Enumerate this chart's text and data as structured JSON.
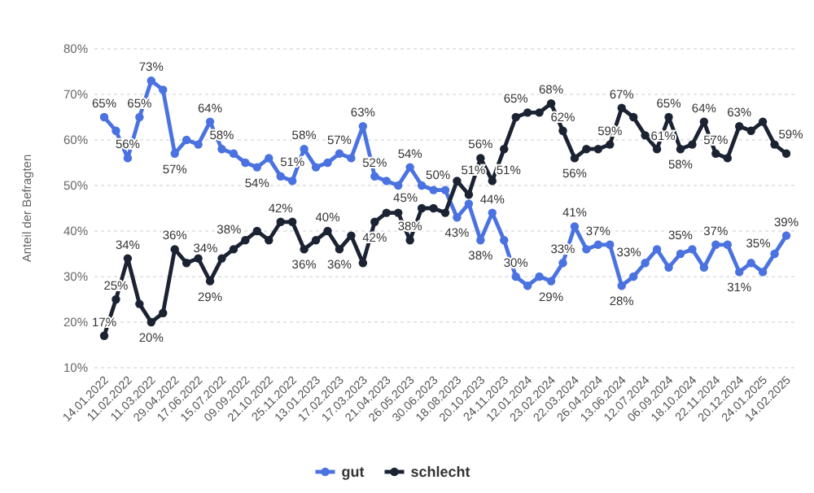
{
  "chart_data": {
    "type": "line",
    "ylabel": "Anteil der Befragten",
    "categories": [
      "14.01.2022",
      null,
      "11.02.2022",
      null,
      "11.03.2022",
      null,
      "29.04.2022",
      null,
      "17.06.2022",
      null,
      "15.07.2022",
      null,
      "09.09.2022",
      null,
      "21.10.2022",
      null,
      "25.11.2022",
      null,
      "13.01.2023",
      null,
      "17.02.2023",
      null,
      "17.03.2023",
      null,
      "21.04.2023",
      null,
      "26.05.2023",
      null,
      "30.06.2023",
      null,
      "18.08.2023",
      null,
      "20.10.2023",
      null,
      "24.11.2023",
      null,
      "12.01.2024",
      null,
      "23.02.2024",
      null,
      "22.03.2024",
      null,
      "26.04.2024",
      null,
      "13.06.2024",
      null,
      "12.07.2024",
      null,
      "06.09.2024",
      null,
      "18.10.2024",
      null,
      "22.11.2024",
      null,
      "20.12.2024",
      null,
      "24.01.2025",
      null,
      "14.02.2025"
    ],
    "series": [
      {
        "name": "gut",
        "color": "#4a72e0",
        "values": [
          65,
          62,
          56,
          65,
          73,
          71,
          57,
          60,
          59,
          64,
          58,
          57,
          55,
          54,
          56,
          52,
          51,
          58,
          54,
          55,
          57,
          56,
          63,
          52,
          51,
          50,
          54,
          50,
          49,
          49,
          43,
          46,
          38,
          44,
          38,
          30,
          28,
          30,
          29,
          33,
          41,
          36,
          37,
          37,
          28,
          30,
          33,
          36,
          32,
          35,
          36,
          32,
          37,
          37,
          31,
          33,
          31,
          35,
          39
        ],
        "value_labels": [
          "65%",
          null,
          "56%",
          "65%",
          "73%",
          null,
          "57%",
          null,
          null,
          "64%",
          "58%",
          null,
          null,
          "54%",
          null,
          null,
          "51%",
          "58%",
          null,
          null,
          "57%",
          null,
          "63%",
          "52%",
          null,
          null,
          "54%",
          "50%",
          null,
          null,
          "43%",
          null,
          "38%",
          "44%",
          null,
          "30%",
          null,
          null,
          "29%",
          "33%",
          "41%",
          null,
          "37%",
          null,
          "28%",
          null,
          "33%",
          null,
          null,
          "35%",
          null,
          null,
          "37%",
          null,
          "31%",
          null,
          null,
          "35%",
          "39%"
        ]
      },
      {
        "name": "schlecht",
        "color": "#1b2333",
        "values": [
          17,
          25,
          34,
          24,
          20,
          22,
          36,
          33,
          34,
          29,
          34,
          36,
          38,
          40,
          38,
          42,
          42,
          36,
          38,
          40,
          36,
          39,
          33,
          42,
          44,
          44,
          38,
          45,
          45,
          44,
          51,
          48,
          56,
          51,
          58,
          65,
          66,
          66,
          68,
          62,
          56,
          58,
          58,
          59,
          67,
          65,
          61,
          58,
          65,
          58,
          59,
          64,
          57,
          56,
          63,
          62,
          64,
          59,
          57
        ],
        "value_labels": [
          "17%",
          "25%",
          "34%",
          null,
          "20%",
          null,
          "36%",
          null,
          null,
          "29%",
          "34%",
          null,
          "38%",
          null,
          null,
          "42%",
          null,
          "36%",
          null,
          "40%",
          "36%",
          null,
          null,
          "42%",
          null,
          null,
          "38%",
          "45%",
          null,
          null,
          "51%",
          null,
          "56%",
          "51%",
          null,
          "65%",
          null,
          null,
          "68%",
          "62%",
          "56%",
          null,
          null,
          "59%",
          "67%",
          null,
          "61%",
          null,
          "65%",
          "58%",
          null,
          "64%",
          "57%",
          null,
          "63%",
          null,
          null,
          "59%",
          null
        ]
      }
    ],
    "ylim": [
      10,
      80
    ],
    "yticks": [
      {
        "value": 10,
        "label": "10%"
      },
      {
        "value": 20,
        "label": "20%"
      },
      {
        "value": 30,
        "label": "30%"
      },
      {
        "value": 40,
        "label": "40%"
      },
      {
        "value": 50,
        "label": "50%"
      },
      {
        "value": 60,
        "label": "60%"
      },
      {
        "value": 70,
        "label": "70%"
      },
      {
        "value": 80,
        "label": "80%"
      }
    ],
    "grid": "y",
    "legend": "bottom",
    "marker": "circle",
    "line_style": "solid"
  }
}
